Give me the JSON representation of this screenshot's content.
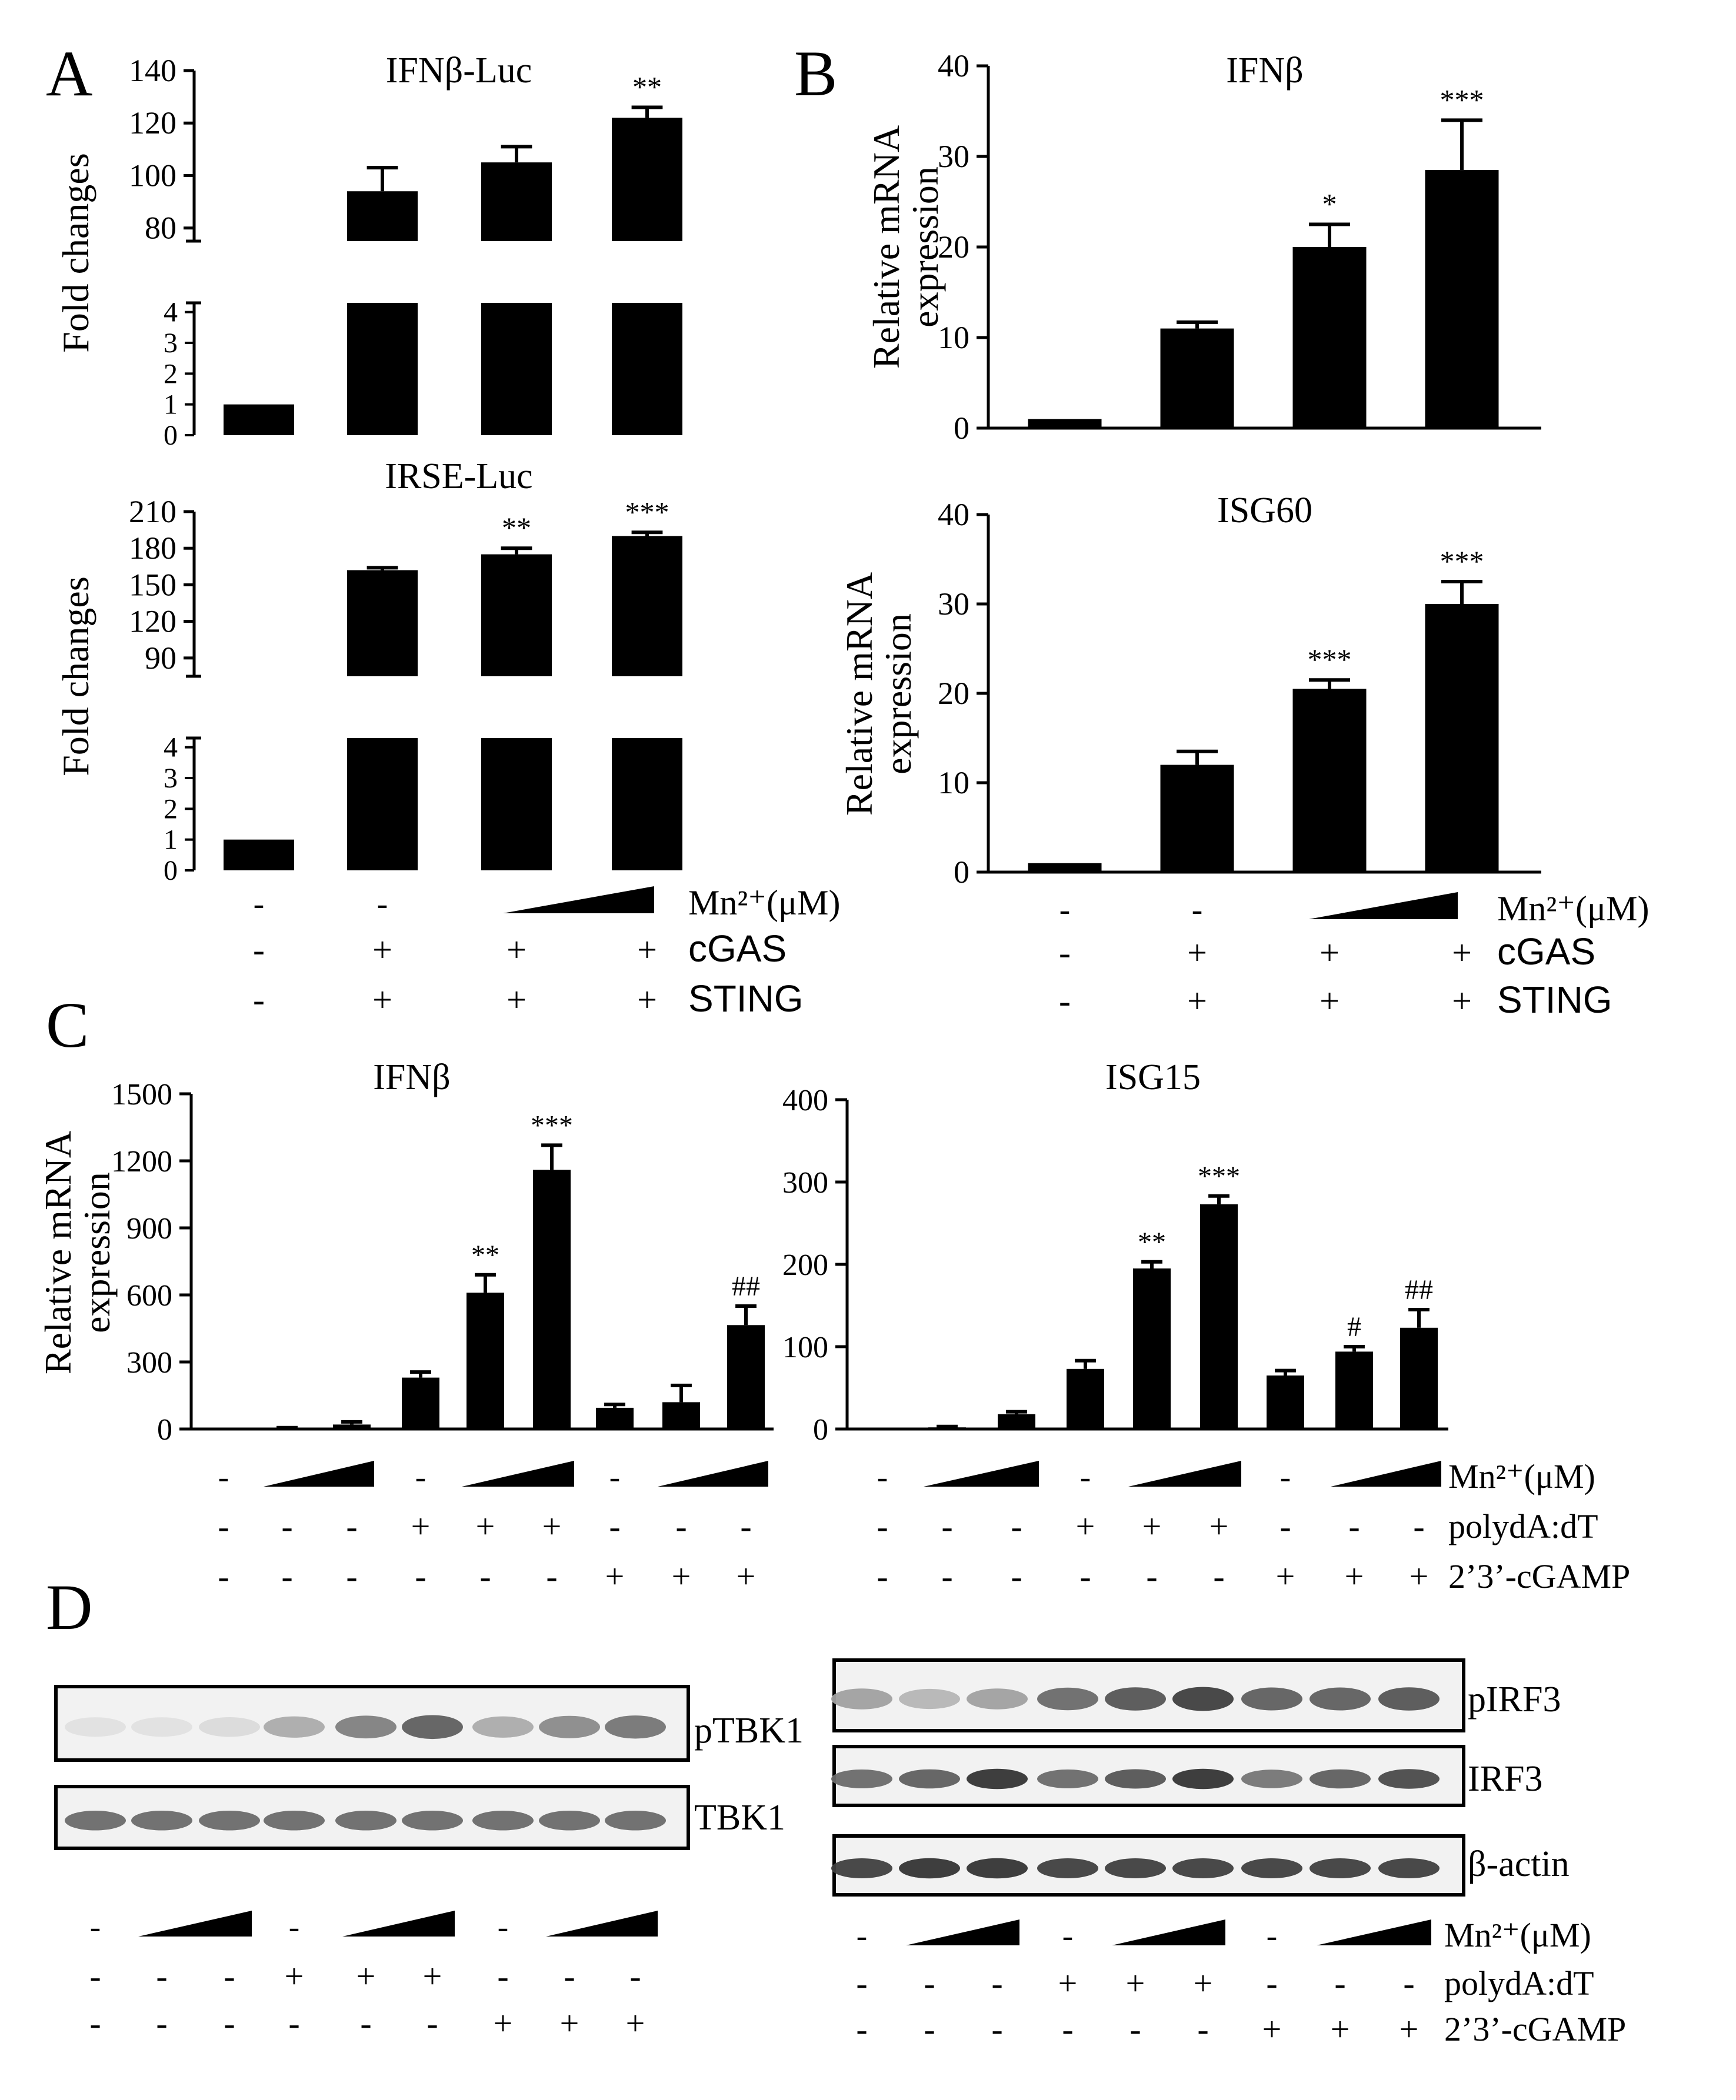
{
  "panel_letters": [
    "A",
    "B",
    "C",
    "D"
  ],
  "symbols": {
    "plus": "+",
    "minus": "-"
  },
  "chart_data": [
    {
      "type": "bar",
      "panel": "A",
      "title": "IFNβ-Luc",
      "ylabel": "Fold changes",
      "broken_axis": true,
      "lower_ylim": [
        0,
        4.3
      ],
      "lower_ticks": [
        "0",
        "1",
        "2",
        "3",
        "4"
      ],
      "upper_ylim": [
        75,
        140
      ],
      "upper_ticks": [
        "80",
        "100",
        "120",
        "140"
      ],
      "values": [
        1,
        94,
        105,
        122
      ],
      "errors": [
        0,
        9,
        6,
        4
      ],
      "annotations": [
        "",
        "",
        "",
        "**"
      ]
    },
    {
      "type": "bar",
      "panel": "A",
      "title": "IRSE-Luc",
      "ylabel": "Fold changes",
      "broken_axis": true,
      "lower_ylim": [
        0,
        4.3
      ],
      "lower_ticks": [
        "0",
        "1",
        "2",
        "3",
        "4"
      ],
      "upper_ylim": [
        75,
        210
      ],
      "upper_ticks": [
        "90",
        "120",
        "150",
        "180",
        "210"
      ],
      "values": [
        1,
        162,
        175,
        190
      ],
      "errors": [
        0,
        2,
        5,
        3
      ],
      "annotations": [
        "",
        "",
        "**",
        "***"
      ]
    },
    {
      "type": "bar",
      "panel": "B",
      "title": "IFNβ",
      "ylabel": "Relative mRNA expression",
      "ylim": [
        0,
        40
      ],
      "ticks": [
        "0",
        "10",
        "20",
        "30",
        "40"
      ],
      "values": [
        1,
        11,
        20,
        28.5
      ],
      "errors": [
        0,
        0.7,
        2.5,
        5.5
      ],
      "annotations": [
        "",
        "",
        "*",
        "***"
      ]
    },
    {
      "type": "bar",
      "panel": "B",
      "title": "ISG60",
      "ylabel": "Relative mRNA expression",
      "ylim": [
        0,
        40
      ],
      "ticks": [
        "0",
        "10",
        "20",
        "30",
        "40"
      ],
      "values": [
        1,
        12,
        20.5,
        30
      ],
      "errors": [
        0,
        1.5,
        1,
        2.5
      ],
      "annotations": [
        "",
        "",
        "***",
        "***"
      ]
    },
    {
      "type": "bar",
      "panel": "C",
      "title": "IFNβ",
      "ylabel": "Relative mRNA expression",
      "ylim": [
        0,
        1500
      ],
      "ticks": [
        "0",
        "300",
        "600",
        "900",
        "1200",
        "1500"
      ],
      "values": [
        0,
        3,
        20,
        230,
        610,
        1160,
        95,
        120,
        465
      ],
      "errors": [
        0,
        3,
        12,
        25,
        80,
        110,
        15,
        75,
        85
      ],
      "annotations": [
        "",
        "",
        "",
        "",
        "**",
        "***",
        "",
        "",
        "##"
      ]
    },
    {
      "type": "bar",
      "panel": "C",
      "title": "ISG15",
      "ylabel": "",
      "ylim": [
        0,
        400
      ],
      "ticks": [
        "0",
        "100",
        "200",
        "300",
        "400"
      ],
      "values": [
        0,
        2,
        18,
        73,
        195,
        273,
        65,
        94,
        123
      ],
      "errors": [
        0,
        1,
        3,
        10,
        8,
        10,
        6,
        6,
        22
      ],
      "annotations": [
        "",
        "",
        "",
        "",
        "**",
        "***",
        "",
        "#",
        "##"
      ]
    }
  ],
  "conditions": {
    "AB": {
      "mn_label": "Mn²⁺(μM)",
      "rows": [
        {
          "label": "cGAS",
          "signs": [
            "-",
            "+",
            "+",
            "+"
          ]
        },
        {
          "label": "STING",
          "signs": [
            "-",
            "+",
            "+",
            "+"
          ]
        }
      ],
      "mn_signs": [
        "-",
        "-"
      ]
    },
    "CD": {
      "mn_label": "Mn²⁺(μM)",
      "mn_signs": [
        "-",
        "-",
        "-"
      ],
      "rows": [
        {
          "label": "polydA:dT",
          "signs": [
            "-",
            "-",
            "-",
            "+",
            "+",
            "+",
            "-",
            "-",
            "-"
          ]
        },
        {
          "label": "2’3’-cGAMP",
          "signs": [
            "-",
            "-",
            "-",
            "-",
            "-",
            "-",
            "+",
            "+",
            "+"
          ]
        }
      ]
    }
  },
  "blots": {
    "left": [
      {
        "label": "pTBK1",
        "intensity": [
          0.05,
          0.05,
          0.08,
          0.3,
          0.5,
          0.65,
          0.3,
          0.45,
          0.55
        ]
      },
      {
        "label": "TBK1",
        "intensity": [
          0.6,
          0.6,
          0.6,
          0.6,
          0.6,
          0.6,
          0.6,
          0.6,
          0.6
        ]
      }
    ],
    "right": [
      {
        "label": "pIRF3",
        "intensity": [
          0.35,
          0.25,
          0.35,
          0.6,
          0.7,
          0.8,
          0.65,
          0.65,
          0.7
        ]
      },
      {
        "label": "IRF3",
        "intensity": [
          0.6,
          0.65,
          0.85,
          0.6,
          0.7,
          0.85,
          0.55,
          0.65,
          0.75
        ]
      },
      {
        "label": "β-actin",
        "intensity": [
          0.8,
          0.85,
          0.85,
          0.8,
          0.8,
          0.8,
          0.8,
          0.8,
          0.8
        ]
      }
    ]
  }
}
